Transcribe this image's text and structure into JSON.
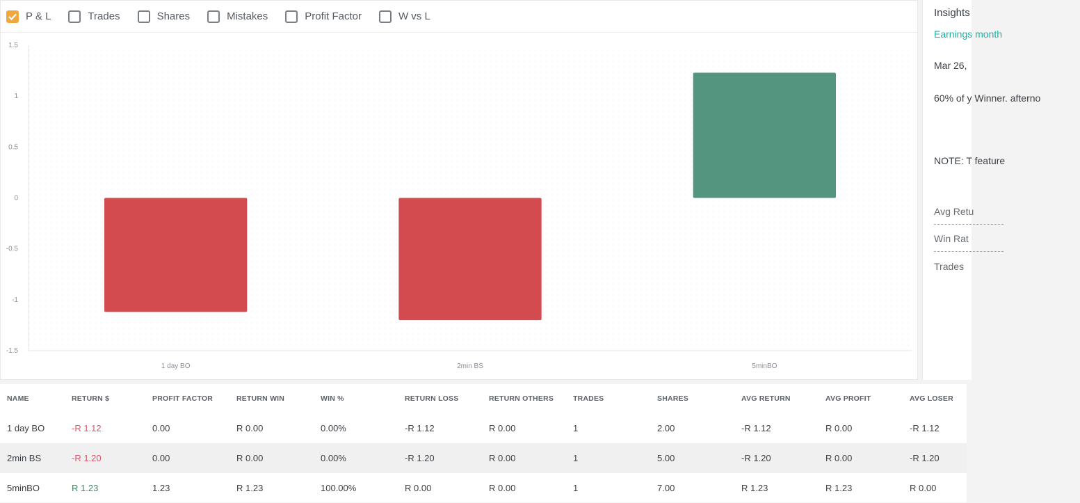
{
  "toolbar": {
    "options": [
      {
        "label": "P & L",
        "checked": true
      },
      {
        "label": "Trades",
        "checked": false
      },
      {
        "label": "Shares",
        "checked": false
      },
      {
        "label": "Mistakes",
        "checked": false
      },
      {
        "label": "Profit Factor",
        "checked": false
      },
      {
        "label": "W vs L",
        "checked": false
      }
    ]
  },
  "chart_data": {
    "type": "bar",
    "categories": [
      "1 day BO",
      "2min BS",
      "5minBO"
    ],
    "values": [
      -1.12,
      -1.2,
      1.23
    ],
    "ylim": [
      -1.5,
      1.5
    ],
    "yticks": [
      "1.5",
      "1",
      "0.5",
      "0",
      "-0.5",
      "-1",
      "-1.5"
    ],
    "grid": "dotted",
    "colors": {
      "negative": "#d34b4e",
      "positive": "#53957f"
    }
  },
  "insights": {
    "title": "Insights",
    "link": "Earnings month",
    "date": "Mar 26,",
    "text": "60% of y Winner. afterno",
    "note": "NOTE: T feature",
    "rows": [
      "Avg Retu",
      "Win Rat",
      "Trades"
    ]
  },
  "table": {
    "headers": [
      "NAME",
      "RETURN $",
      "PROFIT FACTOR",
      "RETURN WIN",
      "WIN %",
      "RETURN LOSS",
      "RETURN OTHERS",
      "TRADES",
      "SHARES",
      "AVG RETURN",
      "AVG PROFIT",
      "AVG LOSER"
    ],
    "rows": [
      [
        "1 day BO",
        "-R 1.12",
        "0.00",
        "R 0.00",
        "0.00%",
        "-R 1.12",
        "R 0.00",
        "1",
        "2.00",
        "-R 1.12",
        "R 0.00",
        "-R 1.12"
      ],
      [
        "2min BS",
        "-R 1.20",
        "0.00",
        "R 0.00",
        "0.00%",
        "-R 1.20",
        "R 0.00",
        "1",
        "5.00",
        "-R 1.20",
        "R 0.00",
        "-R 1.20"
      ],
      [
        "5minBO",
        "R 1.23",
        "1.23",
        "R 1.23",
        "100.00%",
        "R 0.00",
        "R 0.00",
        "1",
        "7.00",
        "R 1.23",
        "R 1.23",
        "R 0.00"
      ]
    ]
  }
}
